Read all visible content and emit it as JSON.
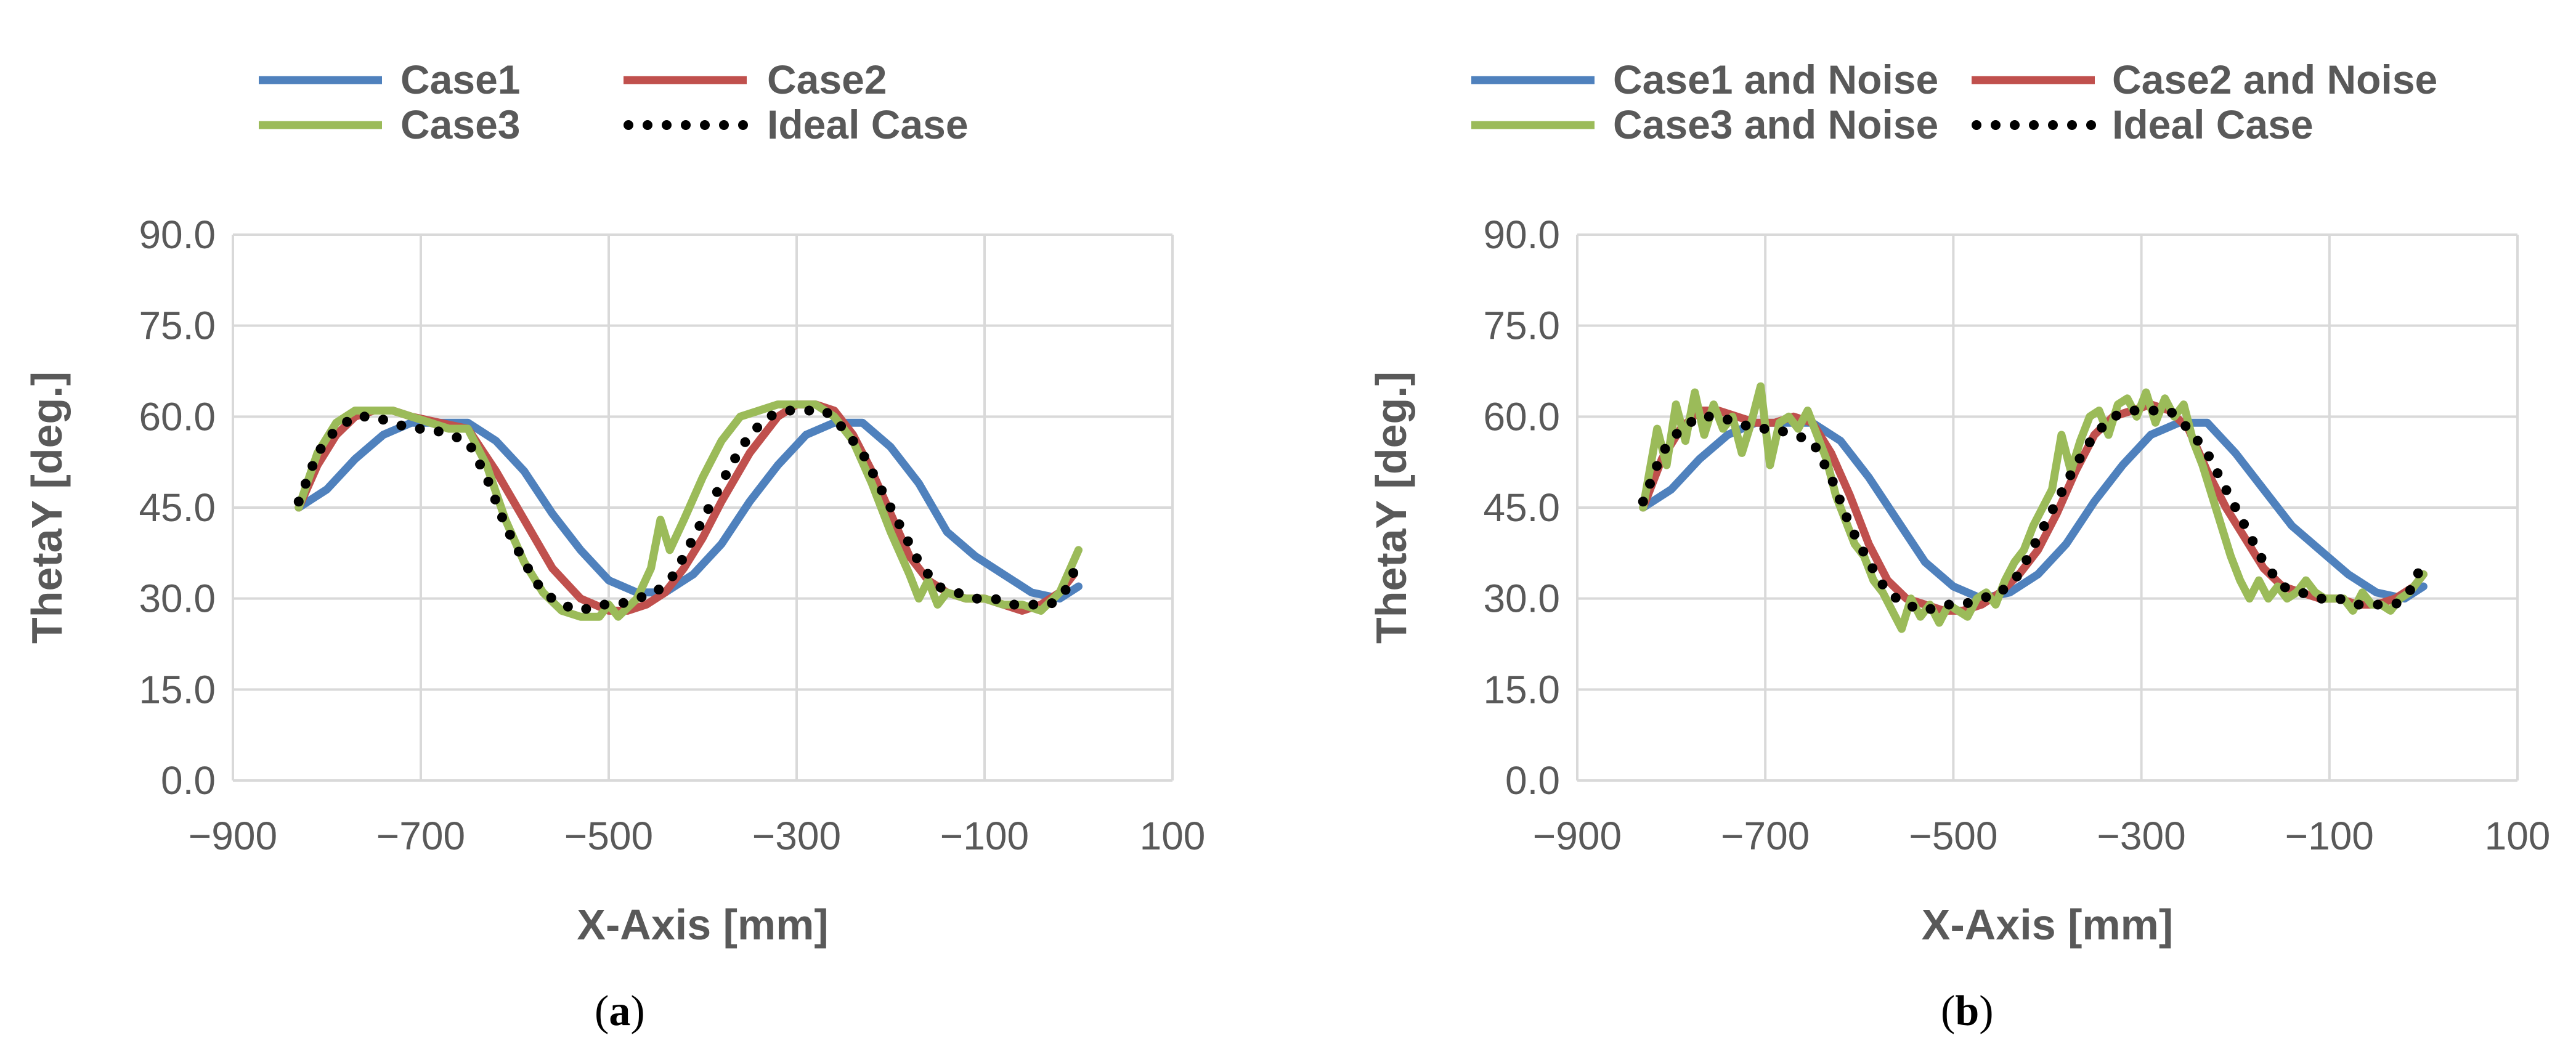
{
  "colors": {
    "case1": "#4F81BD",
    "case2": "#C0504D",
    "case3": "#9BBB59",
    "ideal": "#000000",
    "grid": "#D9D9D9",
    "text": "#595959"
  },
  "chart_data": [
    {
      "type": "line",
      "panel": "a",
      "caption_open": "(",
      "caption_letter": "a",
      "caption_close": ")",
      "xlabel": "X-Axis [mm]",
      "ylabel": "ThetaY [deg.]",
      "xlim": [
        -900,
        100
      ],
      "ylim": [
        0,
        90
      ],
      "xticks": [
        -900,
        -700,
        -500,
        -300,
        -100,
        100
      ],
      "xtick_labels": [
        "−900",
        "−700",
        "−500",
        "−300",
        "−100",
        "100"
      ],
      "yticks": [
        0,
        15,
        30,
        45,
        60,
        75,
        90
      ],
      "ytick_labels": [
        "0.0",
        "15.0",
        "30.0",
        "45.0",
        "60.0",
        "75.0",
        "90.0"
      ],
      "grid": true,
      "legend_position": "top",
      "series": [
        {
          "name": "Case1",
          "color": "#4F81BD",
          "style": "solid",
          "x": [
            -830,
            -800,
            -770,
            -740,
            -710,
            -680,
            -650,
            -620,
            -590,
            -560,
            -530,
            -500,
            -470,
            -440,
            -410,
            -380,
            -350,
            -320,
            -290,
            -260,
            -230,
            -200,
            -170,
            -140,
            -110,
            -80,
            -50,
            -20,
            0
          ],
          "y": [
            45,
            48,
            53,
            57,
            59,
            59,
            59,
            56,
            51,
            44,
            38,
            33,
            31,
            31,
            34,
            39,
            46,
            52,
            57,
            59,
            59,
            55,
            49,
            41,
            37,
            34,
            31,
            30,
            32
          ]
        },
        {
          "name": "Case2",
          "color": "#C0504D",
          "style": "solid",
          "x": [
            -830,
            -810,
            -790,
            -770,
            -750,
            -730,
            -710,
            -680,
            -650,
            -620,
            -590,
            -560,
            -530,
            -500,
            -480,
            -460,
            -440,
            -420,
            -400,
            -380,
            -350,
            -320,
            -300,
            -280,
            -260,
            -240,
            -220,
            -200,
            -180,
            -160,
            -140,
            -120,
            -100,
            -80,
            -60,
            -40,
            -20,
            -5
          ],
          "y": [
            45,
            52,
            57,
            60,
            61,
            61,
            60,
            59,
            58,
            51,
            43,
            35,
            30,
            28,
            28,
            29,
            31,
            35,
            40,
            46,
            54,
            60,
            62,
            62,
            61,
            57,
            51,
            44,
            37,
            33,
            31,
            30,
            30,
            29,
            28,
            29,
            31,
            34
          ]
        },
        {
          "name": "Case3",
          "color": "#9BBB59",
          "style": "solid",
          "x": [
            -830,
            -810,
            -790,
            -770,
            -750,
            -730,
            -710,
            -690,
            -670,
            -650,
            -630,
            -610,
            -590,
            -570,
            -550,
            -530,
            -510,
            -500,
            -490,
            -470,
            -455,
            -445,
            -435,
            -420,
            -400,
            -380,
            -360,
            -340,
            -320,
            -300,
            -280,
            -260,
            -240,
            -220,
            -200,
            -180,
            -170,
            -160,
            -150,
            -140,
            -120,
            -100,
            -80,
            -60,
            -40,
            -20,
            0
          ],
          "y": [
            45,
            54,
            59,
            61,
            61,
            61,
            60,
            59,
            58,
            58,
            52,
            43,
            36,
            31,
            28,
            27,
            27,
            29,
            27,
            30,
            35,
            43,
            38,
            43,
            50,
            56,
            60,
            61,
            62,
            62,
            62,
            60,
            56,
            49,
            41,
            34,
            30,
            33,
            29,
            31,
            30,
            30,
            29,
            29,
            28,
            31,
            38
          ]
        },
        {
          "name": "Ideal Case",
          "color": "#000000",
          "style": "dotted",
          "x": [
            -830,
            -810,
            -790,
            -770,
            -750,
            -730,
            -710,
            -690,
            -670,
            -650,
            -630,
            -610,
            -590,
            -570,
            -550,
            -530,
            -510,
            -490,
            -470,
            -450,
            -430,
            -410,
            -390,
            -370,
            -350,
            -330,
            -310,
            -290,
            -270,
            -250,
            -230,
            -210,
            -190,
            -170,
            -150,
            -130,
            -110,
            -90,
            -70,
            -50,
            -30,
            -10,
            0
          ],
          "y": [
            46,
            54,
            58,
            60,
            60,
            59,
            58,
            58,
            57,
            56,
            50,
            42,
            36,
            31,
            29,
            28,
            29,
            29,
            30,
            31,
            34,
            40,
            46,
            52,
            57,
            60,
            61,
            61,
            61,
            58,
            54,
            48,
            42,
            36,
            32,
            31,
            30,
            30,
            29,
            29,
            29,
            32,
            37
          ]
        }
      ]
    },
    {
      "type": "line",
      "panel": "b",
      "caption_open": "(",
      "caption_letter": "b",
      "caption_close": ")",
      "xlabel": "X-Axis [mm]",
      "ylabel": "ThetaY [deg.]",
      "xlim": [
        -900,
        100
      ],
      "ylim": [
        0,
        90
      ],
      "xticks": [
        -900,
        -700,
        -500,
        -300,
        -100,
        100
      ],
      "xtick_labels": [
        "−900",
        "−700",
        "−500",
        "−300",
        "−100",
        "100"
      ],
      "yticks": [
        0,
        15,
        30,
        45,
        60,
        75,
        90
      ],
      "ytick_labels": [
        "0.0",
        "15.0",
        "30.0",
        "45.0",
        "60.0",
        "75.0",
        "90.0"
      ],
      "grid": true,
      "legend_position": "top",
      "series": [
        {
          "name": "Case1 and Noise",
          "color": "#4F81BD",
          "style": "solid",
          "x": [
            -830,
            -800,
            -770,
            -740,
            -710,
            -680,
            -650,
            -620,
            -590,
            -560,
            -530,
            -500,
            -470,
            -440,
            -410,
            -380,
            -350,
            -320,
            -290,
            -260,
            -230,
            -200,
            -170,
            -140,
            -110,
            -80,
            -50,
            -20,
            0
          ],
          "y": [
            45,
            48,
            53,
            57,
            59,
            59,
            59,
            56,
            50,
            43,
            36,
            32,
            30,
            31,
            34,
            39,
            46,
            52,
            57,
            59,
            59,
            54,
            48,
            42,
            38,
            34,
            31,
            30,
            32
          ]
        },
        {
          "name": "Case2 and Noise",
          "color": "#C0504D",
          "style": "solid",
          "x": [
            -830,
            -810,
            -790,
            -770,
            -750,
            -730,
            -710,
            -690,
            -670,
            -650,
            -630,
            -610,
            -590,
            -570,
            -550,
            -530,
            -510,
            -490,
            -470,
            -450,
            -430,
            -410,
            -390,
            -370,
            -350,
            -330,
            -310,
            -290,
            -270,
            -250,
            -230,
            -210,
            -190,
            -170,
            -150,
            -130,
            -110,
            -90,
            -70,
            -50,
            -30,
            -10,
            0
          ],
          "y": [
            45,
            53,
            58,
            61,
            61,
            60,
            59,
            59,
            60,
            59,
            54,
            47,
            39,
            33,
            30,
            29,
            28,
            28,
            29,
            31,
            34,
            38,
            44,
            51,
            57,
            60,
            61,
            62,
            61,
            58,
            51,
            45,
            40,
            35,
            32,
            31,
            30,
            30,
            29,
            29,
            30,
            32,
            34
          ]
        },
        {
          "name": "Case3 and Noise",
          "color": "#9BBB59",
          "style": "solid",
          "x": [
            -830,
            -815,
            -805,
            -795,
            -785,
            -775,
            -765,
            -755,
            -745,
            -735,
            -725,
            -715,
            -705,
            -695,
            -685,
            -675,
            -665,
            -655,
            -645,
            -635,
            -625,
            -615,
            -605,
            -595,
            -585,
            -575,
            -565,
            -555,
            -545,
            -535,
            -525,
            -515,
            -505,
            -495,
            -485,
            -475,
            -465,
            -455,
            -445,
            -435,
            -425,
            -415,
            -405,
            -395,
            -385,
            -375,
            -365,
            -355,
            -345,
            -335,
            -325,
            -315,
            -305,
            -295,
            -285,
            -275,
            -265,
            -255,
            -245,
            -235,
            -225,
            -215,
            -205,
            -195,
            -185,
            -175,
            -165,
            -155,
            -145,
            -135,
            -125,
            -115,
            -105,
            -95,
            -85,
            -75,
            -65,
            -55,
            -45,
            -35,
            -25,
            -15,
            -5,
            0
          ],
          "y": [
            45,
            58,
            52,
            62,
            56,
            64,
            57,
            62,
            58,
            60,
            54,
            59,
            65,
            52,
            59,
            60,
            58,
            61,
            57,
            53,
            47,
            43,
            39,
            37,
            33,
            31,
            28,
            25,
            30,
            27,
            29,
            26,
            29,
            28,
            27,
            30,
            31,
            29,
            33,
            36,
            38,
            42,
            45,
            48,
            57,
            51,
            56,
            60,
            61,
            57,
            62,
            63,
            60,
            64,
            59,
            63,
            60,
            62,
            56,
            52,
            47,
            42,
            37,
            33,
            30,
            33,
            30,
            32,
            30,
            31,
            33,
            31,
            30,
            30,
            30,
            28,
            31,
            29,
            29,
            28,
            30,
            31,
            33,
            34
          ]
        },
        {
          "name": "Ideal Case",
          "color": "#000000",
          "style": "dotted",
          "x": [
            -830,
            -810,
            -790,
            -770,
            -750,
            -730,
            -710,
            -690,
            -670,
            -650,
            -630,
            -610,
            -590,
            -570,
            -550,
            -530,
            -510,
            -490,
            -470,
            -450,
            -430,
            -410,
            -390,
            -370,
            -350,
            -330,
            -310,
            -290,
            -270,
            -250,
            -230,
            -210,
            -190,
            -170,
            -150,
            -130,
            -110,
            -90,
            -70,
            -50,
            -30,
            -10,
            0
          ],
          "y": [
            46,
            54,
            58,
            60,
            60,
            59,
            58,
            58,
            57,
            56,
            50,
            42,
            36,
            31,
            29,
            28,
            29,
            29,
            30,
            31,
            34,
            40,
            46,
            52,
            57,
            60,
            61,
            61,
            61,
            58,
            54,
            48,
            42,
            36,
            32,
            31,
            30,
            30,
            29,
            29,
            29,
            32,
            37
          ]
        }
      ]
    }
  ]
}
